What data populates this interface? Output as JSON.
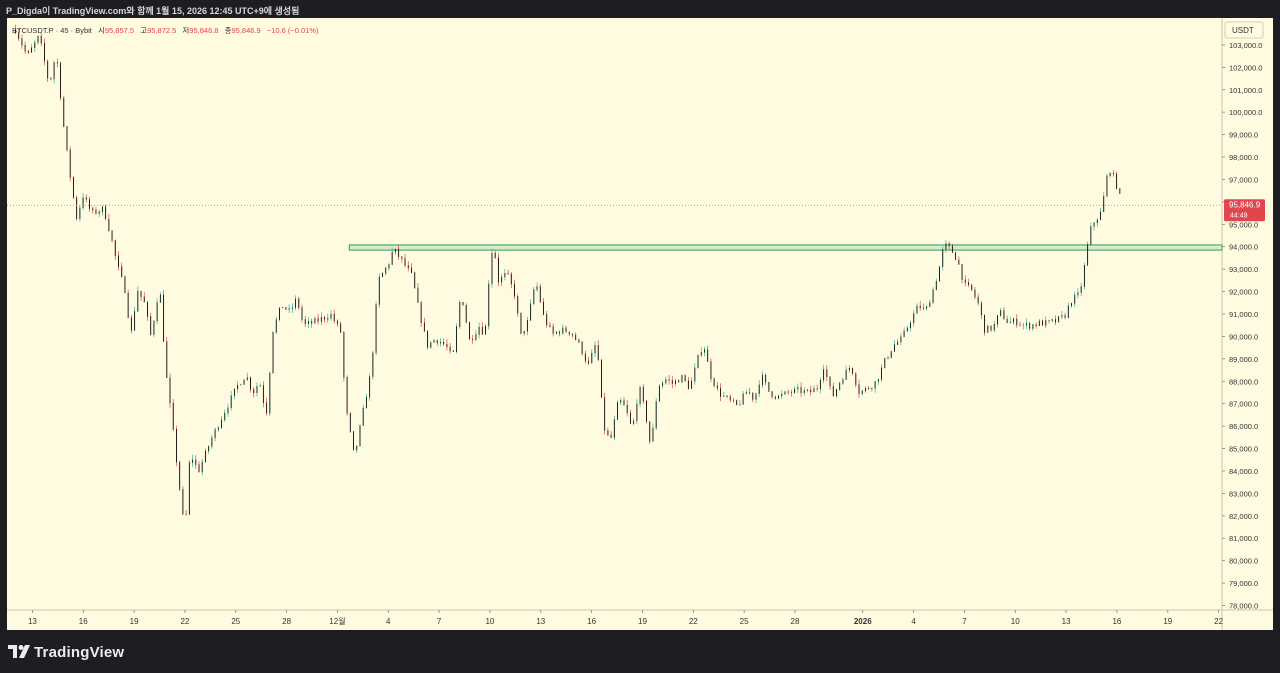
{
  "header": {
    "caption": "P_Digda이 TradingView.com와 함께 1월 15, 2026 12:45 UTC+9에 생성됨"
  },
  "legend": {
    "symbol": "BTCUSDT.P · 45 · Bybit",
    "open_label": "시",
    "open": "95,857.5",
    "high_label": "고",
    "high": "95,872.5",
    "low_label": "저",
    "low": "95,846.8",
    "close_label": "종",
    "close": "95,846.9",
    "change": "−10.6 (−0.01%)"
  },
  "price_scale": {
    "currency": "USDT",
    "last_price": "95,846.9",
    "countdown": "44:49"
  },
  "footer": {
    "brand": "TradingView"
  },
  "colors": {
    "background": "#fefbe1",
    "bar_up": "#2bb5a0",
    "bar_down": "#e0464b",
    "bar_body": "#111111",
    "zone": "#2ea05a",
    "last_price": "#e0464b"
  },
  "chart_data": {
    "type": "line",
    "series_style": "ohlc-bars",
    "ylim": [
      77800,
      104200
    ],
    "y_ticks": [
      78000,
      79000,
      80000,
      81000,
      82000,
      83000,
      84000,
      85000,
      86000,
      87000,
      88000,
      89000,
      90000,
      91000,
      92000,
      93000,
      94000,
      95000,
      96000,
      97000,
      98000,
      99000,
      100000,
      101000,
      102000,
      103000
    ],
    "x_tick_labels": [
      "13",
      "16",
      "19",
      "22",
      "25",
      "28",
      "12월",
      "4",
      "7",
      "10",
      "13",
      "16",
      "19",
      "22",
      "25",
      "28",
      "2026",
      "4",
      "7",
      "10",
      "13",
      "16",
      "19",
      "22"
    ],
    "x_tick_days": [
      0,
      3,
      6,
      9,
      12,
      15,
      18,
      21,
      24,
      27,
      30,
      33,
      36,
      39,
      42,
      45,
      49,
      52,
      55,
      58,
      61,
      64,
      67,
      70
    ],
    "xlim_days": [
      -1.5,
      70.2
    ],
    "price_path": [
      [
        -1.0,
        103700
      ],
      [
        -0.3,
        102500
      ],
      [
        0.4,
        103400
      ],
      [
        1.0,
        101200
      ],
      [
        1.4,
        102700
      ],
      [
        1.9,
        99000
      ],
      [
        2.2,
        97300
      ],
      [
        2.6,
        95300
      ],
      [
        3.0,
        96300
      ],
      [
        3.5,
        95500
      ],
      [
        4.2,
        95700
      ],
      [
        4.6,
        94600
      ],
      [
        5.0,
        93200
      ],
      [
        5.5,
        92000
      ],
      [
        5.8,
        90000
      ],
      [
        6.2,
        92100
      ],
      [
        6.6,
        91500
      ],
      [
        7.0,
        90000
      ],
      [
        7.5,
        92300
      ],
      [
        7.9,
        88300
      ],
      [
        8.3,
        85800
      ],
      [
        8.8,
        82500
      ],
      [
        9.0,
        81200
      ],
      [
        9.3,
        84800
      ],
      [
        9.8,
        84000
      ],
      [
        10.6,
        85500
      ],
      [
        11.3,
        86600
      ],
      [
        12.1,
        87800
      ],
      [
        12.6,
        88300
      ],
      [
        13.0,
        87500
      ],
      [
        13.4,
        88000
      ],
      [
        13.8,
        86500
      ],
      [
        14.2,
        90300
      ],
      [
        14.7,
        91400
      ],
      [
        15.2,
        91100
      ],
      [
        15.6,
        91700
      ],
      [
        16.0,
        90500
      ],
      [
        16.8,
        90700
      ],
      [
        17.6,
        91000
      ],
      [
        18.2,
        90200
      ],
      [
        18.5,
        86800
      ],
      [
        19.0,
        84600
      ],
      [
        19.6,
        87000
      ],
      [
        20.0,
        88500
      ],
      [
        20.4,
        92500
      ],
      [
        21.0,
        93200
      ],
      [
        21.3,
        93900
      ],
      [
        21.8,
        93400
      ],
      [
        22.4,
        92700
      ],
      [
        22.8,
        91200
      ],
      [
        23.3,
        89600
      ],
      [
        23.8,
        89900
      ],
      [
        24.4,
        89600
      ],
      [
        24.8,
        89000
      ],
      [
        25.3,
        92000
      ],
      [
        25.8,
        89800
      ],
      [
        26.4,
        90500
      ],
      [
        26.7,
        90000
      ],
      [
        27.0,
        93200
      ],
      [
        27.2,
        94200
      ],
      [
        27.5,
        92500
      ],
      [
        28.0,
        92800
      ],
      [
        28.5,
        91800
      ],
      [
        28.8,
        90000
      ],
      [
        29.2,
        90600
      ],
      [
        29.7,
        92500
      ],
      [
        30.2,
        90800
      ],
      [
        30.7,
        90100
      ],
      [
        31.2,
        90300
      ],
      [
        31.8,
        90200
      ],
      [
        32.3,
        89600
      ],
      [
        32.8,
        88700
      ],
      [
        33.3,
        89800
      ],
      [
        33.7,
        86000
      ],
      [
        34.1,
        85300
      ],
      [
        34.6,
        87200
      ],
      [
        35.0,
        86800
      ],
      [
        35.4,
        85800
      ],
      [
        35.8,
        87800
      ],
      [
        36.2,
        86500
      ],
      [
        36.5,
        85000
      ],
      [
        36.9,
        87800
      ],
      [
        37.4,
        88100
      ],
      [
        37.8,
        87900
      ],
      [
        38.3,
        88200
      ],
      [
        38.8,
        87700
      ],
      [
        39.3,
        89100
      ],
      [
        39.6,
        89700
      ],
      [
        40.0,
        88300
      ],
      [
        40.5,
        87500
      ],
      [
        41.0,
        87200
      ],
      [
        41.6,
        86900
      ],
      [
        42.2,
        87600
      ],
      [
        42.6,
        87200
      ],
      [
        43.0,
        88300
      ],
      [
        43.5,
        87500
      ],
      [
        44.0,
        87300
      ],
      [
        44.6,
        87500
      ],
      [
        45.2,
        87600
      ],
      [
        45.8,
        87500
      ],
      [
        46.3,
        87700
      ],
      [
        46.7,
        88700
      ],
      [
        47.2,
        87300
      ],
      [
        47.8,
        88200
      ],
      [
        48.3,
        88700
      ],
      [
        48.8,
        87500
      ],
      [
        49.3,
        87700
      ],
      [
        49.8,
        88000
      ],
      [
        50.3,
        88900
      ],
      [
        50.8,
        89600
      ],
      [
        51.3,
        89900
      ],
      [
        51.8,
        90700
      ],
      [
        52.3,
        91400
      ],
      [
        52.7,
        91100
      ],
      [
        53.2,
        92200
      ],
      [
        53.5,
        93000
      ],
      [
        53.8,
        94100
      ],
      [
        54.2,
        93900
      ],
      [
        54.6,
        93400
      ],
      [
        55.0,
        92300
      ],
      [
        55.4,
        92100
      ],
      [
        55.8,
        91500
      ],
      [
        56.2,
        90300
      ],
      [
        56.7,
        90400
      ],
      [
        57.1,
        91100
      ],
      [
        57.6,
        90600
      ],
      [
        58.0,
        90700
      ],
      [
        58.5,
        90500
      ],
      [
        58.9,
        90500
      ],
      [
        59.4,
        90600
      ],
      [
        59.9,
        90600
      ],
      [
        60.4,
        90700
      ],
      [
        60.9,
        90900
      ],
      [
        61.3,
        91600
      ],
      [
        61.8,
        91900
      ],
      [
        62.1,
        93200
      ],
      [
        62.4,
        94700
      ],
      [
        62.7,
        95200
      ],
      [
        63.0,
        95400
      ],
      [
        63.3,
        96500
      ],
      [
        63.5,
        97600
      ],
      [
        63.8,
        97100
      ],
      [
        64.1,
        96500
      ],
      [
        64.3,
        95800
      ]
    ],
    "resistance_zone": {
      "x_start_day": 18.7,
      "x_end_day": 70.2,
      "y_low": 93850,
      "y_high": 94080
    },
    "last_price": 95846.9
  }
}
